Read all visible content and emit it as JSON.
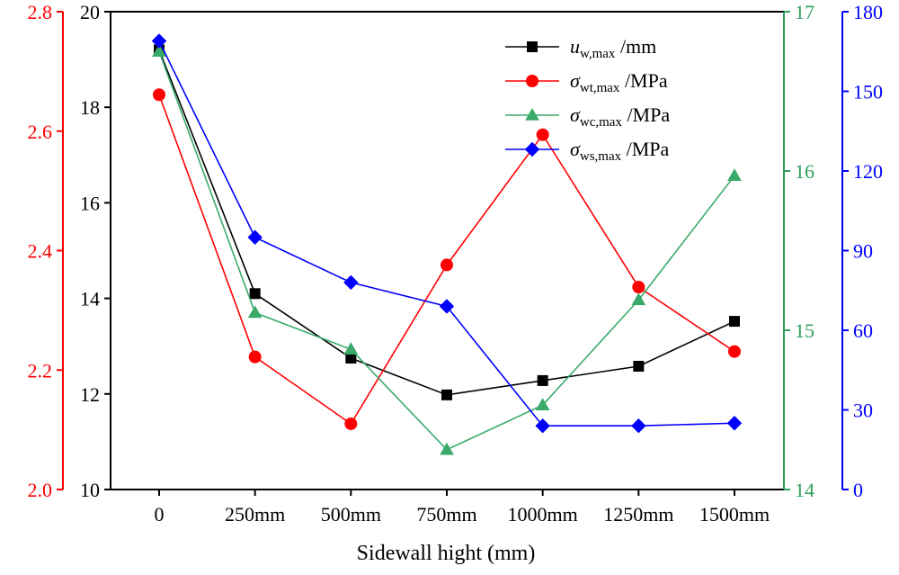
{
  "chart_data": {
    "type": "line",
    "title": "",
    "xlabel": "Sidewall hight (mm)",
    "categories": [
      "0",
      "250mm",
      "500mm",
      "750mm",
      "1000mm",
      "1250mm",
      "1500mm"
    ],
    "axes": {
      "left_outer": {
        "color": "#ff0000",
        "ylim": [
          2.0,
          2.8
        ],
        "ticks": [
          "2.0",
          "2.2",
          "2.4",
          "2.6",
          "2.8"
        ],
        "tick_values": [
          2.0,
          2.2,
          2.4,
          2.6,
          2.8
        ]
      },
      "left_inner": {
        "color": "#000000",
        "ylim": [
          10,
          20
        ],
        "ticks": [
          "10",
          "12",
          "14",
          "16",
          "18",
          "20"
        ],
        "tick_values": [
          10,
          12,
          14,
          16,
          18,
          20
        ]
      },
      "right_inner": {
        "color": "#2e9e5b",
        "ylim": [
          14,
          17
        ],
        "ticks": [
          "14",
          "15",
          "16",
          "17"
        ],
        "tick_values": [
          14,
          15,
          16,
          17
        ]
      },
      "right_outer": {
        "color": "#0000ff",
        "ylim": [
          0,
          180
        ],
        "ticks": [
          "0",
          "30",
          "60",
          "90",
          "120",
          "150",
          "180"
        ],
        "tick_values": [
          0,
          30,
          60,
          90,
          120,
          150,
          180
        ]
      }
    },
    "series": [
      {
        "name": "u",
        "sub": "w,max",
        "unit": " /mm",
        "italic": true,
        "axis": "left_inner",
        "color": "#000000",
        "marker": "square",
        "values": [
          19.2,
          14.1,
          12.75,
          11.98,
          12.28,
          12.58,
          13.52
        ]
      },
      {
        "name": "σ",
        "sub": "wt,max",
        "unit": " /MPa",
        "italic": true,
        "axis": "left_outer",
        "color": "#ff0000",
        "marker": "circle",
        "values": [
          2.661,
          2.222,
          2.11,
          2.376,
          2.594,
          2.339,
          2.231
        ]
      },
      {
        "name": "σ",
        "sub": "wc,max",
        "unit": " /MPa",
        "italic": true,
        "axis": "right_inner",
        "color": "#3aaa6a",
        "marker": "triangle",
        "values": [
          16.75,
          15.11,
          14.88,
          14.25,
          14.53,
          15.19,
          15.97
        ]
      },
      {
        "name": "σ",
        "sub": "ws,max",
        "unit": " /MPa",
        "italic": true,
        "axis": "right_outer",
        "color": "#0000ff",
        "marker": "diamond",
        "values": [
          169,
          95,
          78,
          69,
          24,
          24,
          25
        ]
      }
    ],
    "legend_position": "top-right",
    "grid": false
  }
}
